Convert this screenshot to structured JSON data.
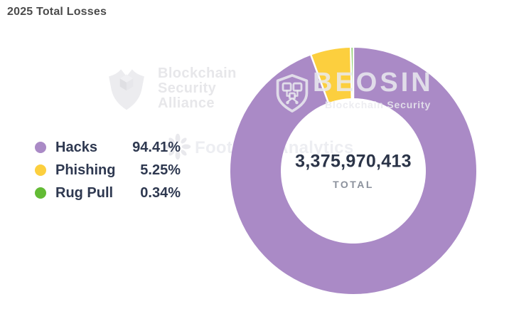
{
  "title": "2025 Total Losses",
  "chart_data": {
    "type": "pie",
    "donut": true,
    "start_angle": "top",
    "direction": "clockwise",
    "title": "2025 Total Losses",
    "legend_position": "left",
    "segments": [
      {
        "label": "Hacks",
        "percent": "94.41%",
        "value": 94.41,
        "color": "#aa8ac6"
      },
      {
        "label": "Phishing",
        "percent": "5.25%",
        "value": 5.25,
        "color": "#fccf3e"
      },
      {
        "label": "Rug Pull",
        "percent": "0.34%",
        "value": 0.34,
        "color": "#63bb35"
      }
    ],
    "center": {
      "value": "3,375,970,413",
      "label": "TOTAL"
    }
  },
  "watermarks": {
    "bsa": {
      "line1": "Blockchain",
      "line2": "Security",
      "line3": "Alliance",
      "icon": "shield-cube-icon"
    },
    "footprint": {
      "name": "Footprint Analytics",
      "icon": "starburst-icon"
    },
    "beosin": {
      "name": "BEOSIN",
      "tagline": "Blockchain Security",
      "icon": "shield-circuit-icon"
    }
  },
  "colors": {
    "background": "#ffffff",
    "title_text": "#4b4b4b",
    "legend_text": "#2e3850",
    "center_value_text": "#2b3448",
    "center_label_text": "#8b919c",
    "watermark_gray": "#e9e9ed",
    "slice_divider": "#ffffff"
  }
}
